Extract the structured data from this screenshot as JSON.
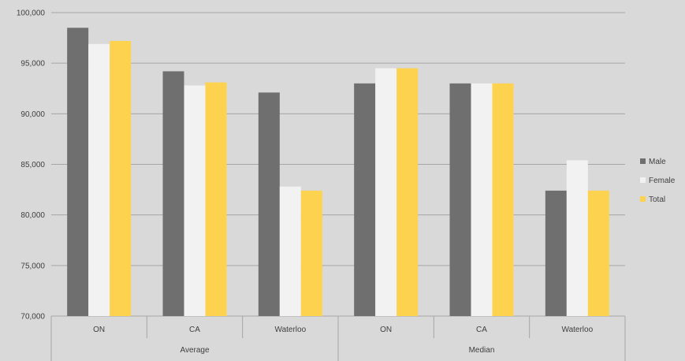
{
  "chart_data": {
    "type": "bar",
    "categories": [
      "ON",
      "CA",
      "Waterloo",
      "ON",
      "CA",
      "Waterloo"
    ],
    "groups": [
      {
        "label": "Average",
        "span": [
          0,
          3
        ]
      },
      {
        "label": "Median",
        "span": [
          3,
          6
        ]
      }
    ],
    "series": [
      {
        "name": "Male",
        "color": "#6f6f6f",
        "values": [
          98500,
          94200,
          92100,
          93000,
          93000,
          82400
        ]
      },
      {
        "name": "Female",
        "color": "#f2f2f2",
        "values": [
          96900,
          92800,
          82800,
          94500,
          93000,
          85400
        ]
      },
      {
        "name": "Total",
        "color": "#fdd24f",
        "values": [
          97200,
          93100,
          82400,
          94500,
          93000,
          82400
        ]
      }
    ],
    "y_ticks": [
      "70,000",
      "75,000",
      "80,000",
      "85,000",
      "90,000",
      "95,000",
      "100,000"
    ],
    "ylim": [
      70000,
      100000
    ],
    "grid": true,
    "legend_position": "right",
    "gridline_color": "#a6a6a6",
    "background_color": "#d9d9d9"
  }
}
